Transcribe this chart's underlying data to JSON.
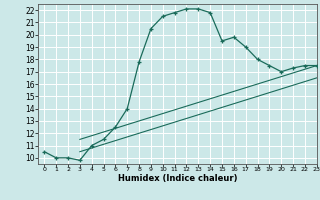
{
  "xlabel": "Humidex (Indice chaleur)",
  "bg_color": "#cce8e8",
  "line_color": "#1a6b5a",
  "grid_color": "#ffffff",
  "curve_x": [
    0,
    1,
    2,
    3,
    4,
    5,
    6,
    7,
    8,
    9,
    10,
    11,
    12,
    13,
    14,
    15,
    16,
    17,
    18,
    19,
    20,
    21,
    22,
    23
  ],
  "curve_y": [
    10.5,
    10.0,
    10.0,
    9.8,
    11.0,
    11.5,
    12.5,
    14.0,
    17.8,
    20.5,
    21.5,
    21.8,
    22.1,
    22.1,
    21.8,
    19.5,
    19.8,
    19.0,
    18.0,
    17.5,
    17.0,
    17.3,
    17.5,
    17.5
  ],
  "line1_x": [
    3,
    23
  ],
  "line1_y": [
    11.5,
    17.5
  ],
  "line2_x": [
    3,
    23
  ],
  "line2_y": [
    10.5,
    16.5
  ],
  "xlim": [
    -0.5,
    23
  ],
  "ylim": [
    9.5,
    22.5
  ],
  "xticks": [
    0,
    1,
    2,
    3,
    4,
    5,
    6,
    7,
    8,
    9,
    10,
    11,
    12,
    13,
    14,
    15,
    16,
    17,
    18,
    19,
    20,
    21,
    22,
    23
  ],
  "yticks": [
    10,
    11,
    12,
    13,
    14,
    15,
    16,
    17,
    18,
    19,
    20,
    21,
    22
  ]
}
